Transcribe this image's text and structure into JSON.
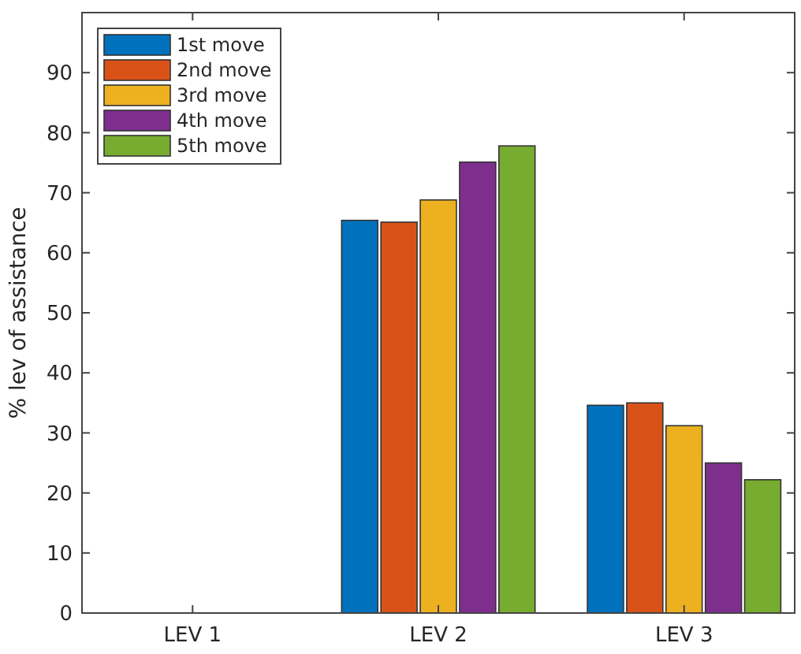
{
  "chart_data": {
    "type": "bar",
    "ylabel": "% lev of assistance",
    "categories": [
      "LEV 1",
      "LEV 2",
      "LEV 3"
    ],
    "series": [
      {
        "name": "1st move",
        "color": "#0072bd",
        "values": [
          0,
          65.4,
          34.6
        ]
      },
      {
        "name": "2nd move",
        "color": "#d95319",
        "values": [
          0,
          65.1,
          35.0
        ]
      },
      {
        "name": "3rd move",
        "color": "#edb120",
        "values": [
          0,
          68.8,
          31.2
        ]
      },
      {
        "name": "4th move",
        "color": "#7e2f8e",
        "values": [
          0,
          75.1,
          25.0
        ]
      },
      {
        "name": "5th move",
        "color": "#77ac30",
        "values": [
          0,
          77.8,
          22.2
        ]
      }
    ],
    "ylim": [
      0,
      100
    ],
    "yticks": [
      0,
      10,
      20,
      30,
      40,
      50,
      60,
      70,
      80,
      90
    ],
    "grid": false,
    "legend": "top left"
  }
}
